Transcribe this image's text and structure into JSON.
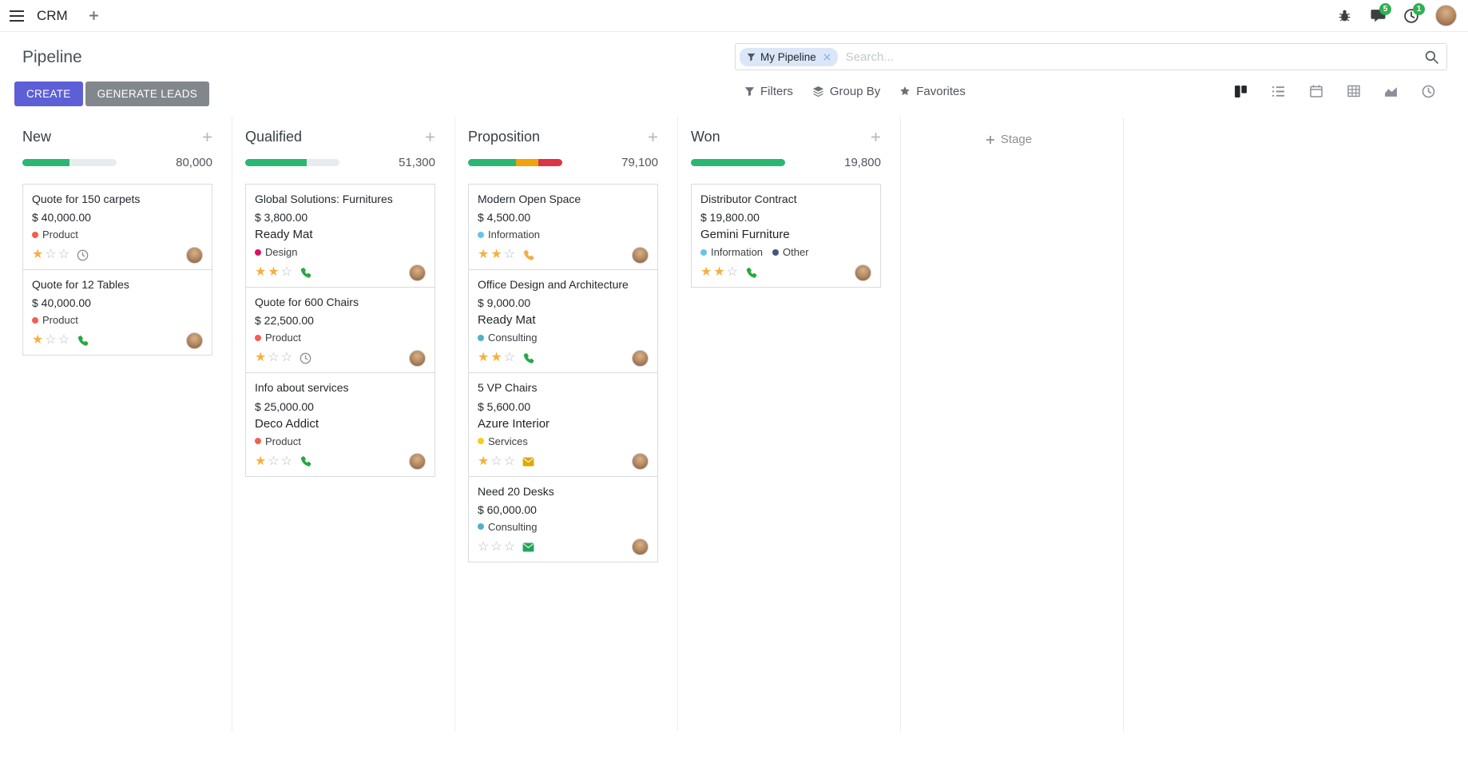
{
  "theme": {
    "primary": "#5d5fd6",
    "secondary": "#82878e",
    "success": "#2bb673",
    "star": "#f5b041",
    "facet-bg": "#dbe7f8",
    "badge": "#2fb052"
  },
  "navbar": {
    "app_name": "CRM",
    "messages_badge": "5",
    "activities_badge": "1"
  },
  "control_panel": {
    "title": "Pipeline",
    "buttons": {
      "create": "CREATE",
      "generate_leads": "GENERATE LEADS"
    },
    "search": {
      "facet_label": "My Pipeline",
      "placeholder": "Search...",
      "filters_label": "Filters",
      "group_by_label": "Group By",
      "favorites_label": "Favorites"
    }
  },
  "kanban": {
    "add_stage_label": "Stage",
    "columns": [
      {
        "name": "New",
        "counter": "80,000",
        "progress": [
          {
            "name": "success",
            "color": "#2bb673",
            "pct": 50
          }
        ],
        "cards": [
          {
            "title": "Quote for 150 carpets",
            "amount": "$ 40,000.00",
            "tags": [
              {
                "label": "Product",
                "color": "#f06050"
              }
            ],
            "stars": 1,
            "activity": {
              "type": "clock",
              "color": "#8a8f98"
            }
          },
          {
            "title": "Quote for 12 Tables",
            "amount": "$ 40,000.00",
            "tags": [
              {
                "label": "Product",
                "color": "#f06050"
              }
            ],
            "stars": 1,
            "activity": {
              "type": "phone",
              "color": "#28a745"
            }
          }
        ]
      },
      {
        "name": "Qualified",
        "counter": "51,300",
        "progress": [
          {
            "name": "success",
            "color": "#2bb673",
            "pct": 65
          }
        ],
        "cards": [
          {
            "title": "Global Solutions: Furnitures",
            "amount": "$ 3,800.00",
            "partner": "Ready Mat",
            "tags": [
              {
                "label": "Design",
                "color": "#d6145f"
              }
            ],
            "stars": 2,
            "activity": {
              "type": "phone",
              "color": "#28a745"
            }
          },
          {
            "title": "Quote for 600 Chairs",
            "amount": "$ 22,500.00",
            "tags": [
              {
                "label": "Product",
                "color": "#f06050"
              }
            ],
            "stars": 1,
            "activity": {
              "type": "clock",
              "color": "#8a8f98"
            }
          },
          {
            "title": "Info about services",
            "amount": "$ 25,000.00",
            "partner": "Deco Addict",
            "tags": [
              {
                "label": "Product",
                "color": "#f06050"
              }
            ],
            "stars": 1,
            "activity": {
              "type": "phone",
              "color": "#28a745"
            }
          }
        ]
      },
      {
        "name": "Proposition",
        "counter": "79,100",
        "progress": [
          {
            "name": "success",
            "color": "#2bb673",
            "pct": 51
          },
          {
            "name": "warning",
            "color": "#f0a30a",
            "pct": 24
          },
          {
            "name": "danger",
            "color": "#dc3545",
            "pct": 25
          }
        ],
        "cards": [
          {
            "title": "Modern Open Space",
            "amount": "$ 4,500.00",
            "tags": [
              {
                "label": "Information",
                "color": "#6cc1ed"
              }
            ],
            "stars": 2,
            "activity": {
              "type": "phone",
              "color": "#f0ad4e"
            }
          },
          {
            "title": "Office Design and Architecture",
            "amount": "$ 9,000.00",
            "partner": "Ready Mat",
            "tags": [
              {
                "label": "Consulting",
                "color": "#50b1c9"
              }
            ],
            "stars": 2,
            "activity": {
              "type": "phone",
              "color": "#28a745"
            }
          },
          {
            "title": "5 VP Chairs",
            "amount": "$ 5,600.00",
            "partner": "Azure Interior",
            "tags": [
              {
                "label": "Services",
                "color": "#f7cd1f"
              }
            ],
            "stars": 1,
            "activity": {
              "type": "envelope",
              "color": "#e0a800"
            }
          },
          {
            "title": "Need 20 Desks",
            "amount": "$ 60,000.00",
            "tags": [
              {
                "label": "Consulting",
                "color": "#50b1c9"
              }
            ],
            "stars": 0,
            "activity": {
              "type": "envelope",
              "color": "#21a558"
            }
          }
        ]
      },
      {
        "name": "Won",
        "counter": "19,800",
        "progress": [
          {
            "name": "success",
            "color": "#2bb673",
            "pct": 100
          }
        ],
        "cards": [
          {
            "title": "Distributor Contract",
            "amount": "$ 19,800.00",
            "partner": "Gemini Furniture",
            "tags": [
              {
                "label": "Information",
                "color": "#6cc1ed"
              },
              {
                "label": "Other",
                "color": "#475577"
              }
            ],
            "stars": 2,
            "activity": {
              "type": "phone",
              "color": "#28a745"
            }
          }
        ]
      }
    ]
  }
}
